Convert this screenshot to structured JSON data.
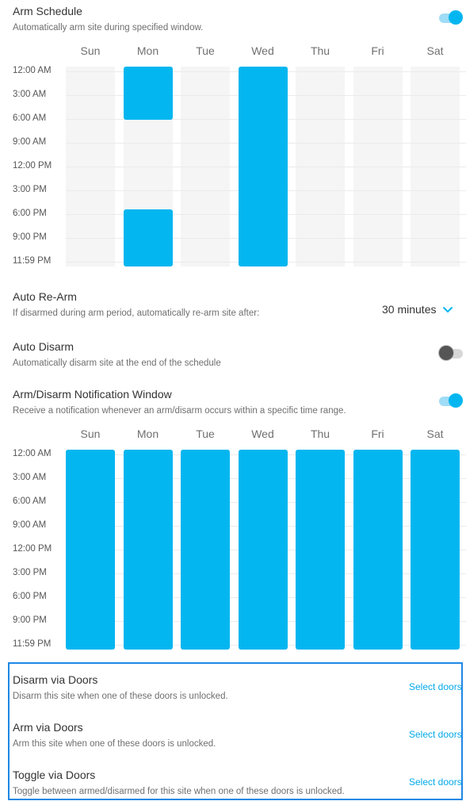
{
  "days": [
    "Sun",
    "Mon",
    "Tue",
    "Wed",
    "Thu",
    "Fri",
    "Sat"
  ],
  "times": [
    "12:00 AM",
    "3:00 AM",
    "6:00 AM",
    "9:00 AM",
    "12:00 PM",
    "3:00 PM",
    "6:00 PM",
    "9:00 PM",
    "11:59 PM"
  ],
  "colors": {
    "accent": "#04b6f0",
    "column_bg": "#f5f5f5",
    "highlight_border": "#1e88e5",
    "link": "#04a9e8"
  },
  "arm_schedule": {
    "title": "Arm Schedule",
    "description": "Automatically arm site during specified window.",
    "enabled": true,
    "blocks": [
      {
        "day": "Mon",
        "start": "12:00 AM",
        "end": "6:00 AM"
      },
      {
        "day": "Mon",
        "start": "6:00 PM",
        "end": "11:59 PM"
      },
      {
        "day": "Wed",
        "start": "12:00 AM",
        "end": "11:59 PM"
      }
    ]
  },
  "auto_rearm": {
    "title": "Auto Re-Arm",
    "description": "If disarmed during arm period, automatically re-arm site after:",
    "value": "30 minutes",
    "icon": "chevron-down-icon"
  },
  "auto_disarm": {
    "title": "Auto Disarm",
    "description": "Automatically disarm site at the end of the schedule",
    "enabled": false
  },
  "notification_window": {
    "title": "Arm/Disarm Notification Window",
    "description": "Receive a notification whenever an arm/disarm occurs within a specific time range.",
    "enabled": true,
    "blocks": [
      {
        "day": "Sun",
        "start": "12:00 AM",
        "end": "11:59 PM"
      },
      {
        "day": "Mon",
        "start": "12:00 AM",
        "end": "11:59 PM"
      },
      {
        "day": "Tue",
        "start": "12:00 AM",
        "end": "11:59 PM"
      },
      {
        "day": "Wed",
        "start": "12:00 AM",
        "end": "11:59 PM"
      },
      {
        "day": "Thu",
        "start": "12:00 AM",
        "end": "11:59 PM"
      },
      {
        "day": "Fri",
        "start": "12:00 AM",
        "end": "11:59 PM"
      },
      {
        "day": "Sat",
        "start": "12:00 AM",
        "end": "11:59 PM"
      }
    ]
  },
  "doors": {
    "disarm": {
      "title": "Disarm via Doors",
      "description": "Disarm this site when one of these doors is unlocked.",
      "link": "Select doors"
    },
    "arm": {
      "title": "Arm via Doors",
      "description": "Arm this site when one of these doors is unlocked.",
      "link": "Select doors"
    },
    "toggle": {
      "title": "Toggle via Doors",
      "description": "Toggle between armed/disarmed for this site when one of these doors is unlocked.",
      "link": "Select doors"
    }
  }
}
